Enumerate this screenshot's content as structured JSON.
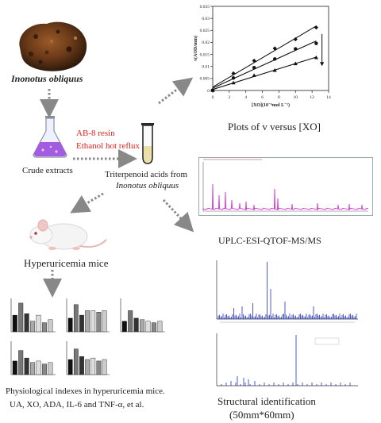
{
  "fungus_label": "Inonotus obliquus",
  "crude_label": "Crude extracts",
  "process_line1": "AB-8 resin",
  "process_line2": "Ethanol hot reflux",
  "triterp_line1": "Triterpenoid acids from",
  "triterp_line2": "Inonotus obliquus",
  "mice_label": "Hyperuricemia mice",
  "physio_line1": "Physiological indexes in hyperuricemia mice.",
  "physio_line2": "UA, XO, ADA, IL-6 and TNF-α, et al.",
  "plot_caption": "Plots of v versus [XO]",
  "uplc_caption": "UPLC-ESI-QTOF-MS/MS",
  "struct_line1": "Structural identification",
  "struct_line2": "(50mm*60mm)",
  "colors": {
    "process_text": "#e8201c",
    "arrow": "#888888",
    "chrom_line": "#cc33cc",
    "ms_line": "#2233bb"
  },
  "chart_data": {
    "type": "line",
    "ylabel": "v(AOD/min)",
    "xlabel": "[XO](10⁻⁶mol L⁻¹)",
    "xlim": [
      0,
      14
    ],
    "ylim": [
      0,
      0.035
    ],
    "x_ticks": [
      "0",
      "2",
      "4",
      "6",
      "8",
      "10",
      "12",
      "14"
    ],
    "y_ticks": [
      "0",
      "0.005",
      "0.01",
      "0.015",
      "0.02",
      "0.025",
      "0.03",
      "0.035"
    ],
    "grid": false,
    "series": [
      {
        "marker": "diamond",
        "points": [
          [
            0,
            0.0002
          ],
          [
            2.5,
            0.0071
          ],
          [
            5,
            0.0124
          ],
          [
            7.5,
            0.0175
          ],
          [
            10,
            0.0213
          ],
          [
            12.5,
            0.0262
          ]
        ]
      },
      {
        "marker": "circle",
        "points": [
          [
            0,
            0.0001
          ],
          [
            2.5,
            0.0052
          ],
          [
            5,
            0.0095
          ],
          [
            7.5,
            0.0131
          ],
          [
            10,
            0.0173
          ],
          [
            12.5,
            0.0196
          ]
        ]
      },
      {
        "marker": "triangle",
        "points": [
          [
            0,
            0.0001
          ],
          [
            2.5,
            0.0032
          ],
          [
            5,
            0.0063
          ],
          [
            7.5,
            0.0084
          ],
          [
            10,
            0.0112
          ],
          [
            12.5,
            0.0137
          ]
        ]
      }
    ]
  }
}
